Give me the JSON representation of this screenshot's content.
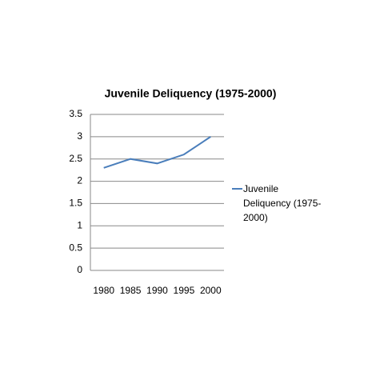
{
  "chart_data": {
    "type": "line",
    "title": "Juvenile Deliquency (1975-2000)",
    "categories": [
      "1980",
      "1985",
      "1990",
      "1995",
      "2000"
    ],
    "series": [
      {
        "name": "Juvenile Deliquency (1975-2000)",
        "color": "#4a7ebb",
        "values": [
          2.3,
          2.5,
          2.4,
          2.6,
          3.0
        ]
      }
    ],
    "ylim": [
      0,
      3.5
    ],
    "yticks": [
      0,
      0.5,
      1,
      1.5,
      2,
      2.5,
      3,
      3.5
    ],
    "grid": true,
    "legend": "right"
  }
}
